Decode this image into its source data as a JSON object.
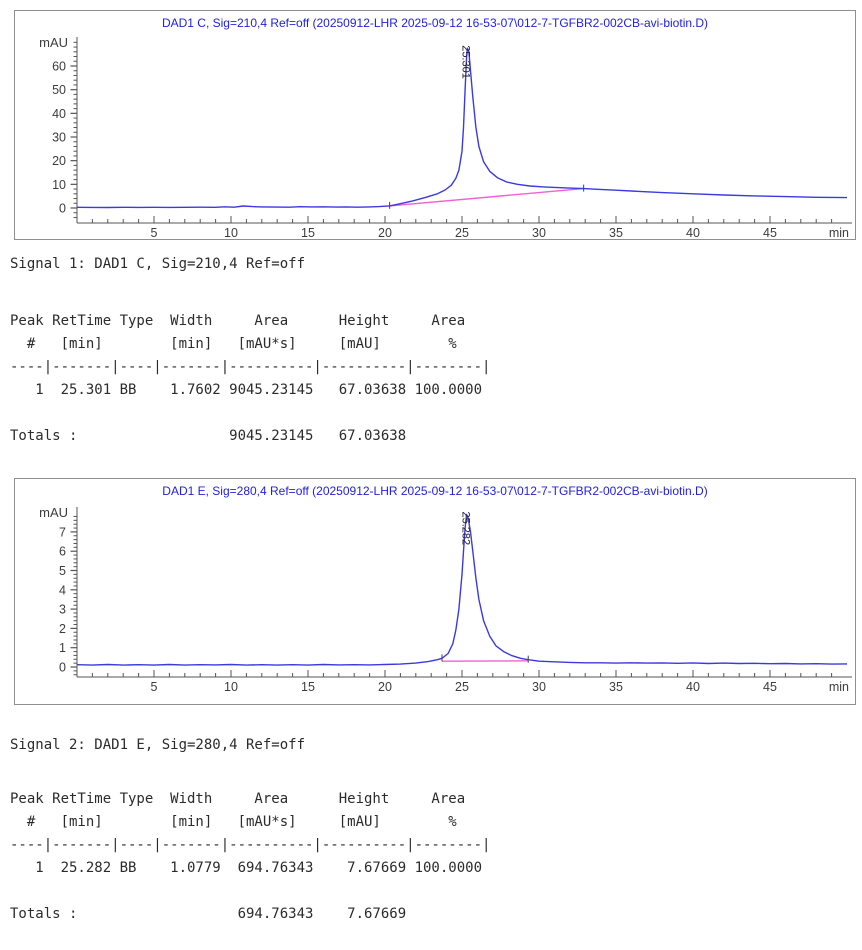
{
  "page": {
    "background": "#ffffff"
  },
  "colors": {
    "title_blue": "#2222dd",
    "curve_blue": "#3a3ae0",
    "baseline_pink": "#f45fd4",
    "axis_line": "#555555",
    "axis_text": "#3c3c3c",
    "body_text": "#2b2b2b",
    "chart_border": "#8f8f8f",
    "peak_label_text": "#222222"
  },
  "signal1": {
    "heading": "Signal 1: DAD1 C, Sig=210,4 Ref=off",
    "table_lines": [
      "Peak RetTime Type  Width     Area      Height     Area  ",
      "  #   [min]        [min]   [mAU*s]     [mAU]        %",
      "----|-------|----|-------|----------|----------|--------|",
      "   1  25.301 BB    1.7602 9045.23145   67.03638 100.0000",
      "",
      "Totals :                  9045.23145   67.03638"
    ],
    "table": {
      "headers": [
        "Peak #",
        "RetTime [min]",
        "Type",
        "Width [min]",
        "Area [mAU*s]",
        "Height [mAU]",
        "Area %"
      ],
      "rows": [
        [
          "1",
          "25.301",
          "BB",
          "1.7602",
          "9045.23145",
          "67.03638",
          "100.0000"
        ]
      ],
      "totals": {
        "label": "Totals :",
        "area": "9045.23145",
        "height": "67.03638"
      }
    }
  },
  "signal2": {
    "heading": "Signal 2: DAD1 E, Sig=280,4 Ref=off",
    "table_lines": [
      "Peak RetTime Type  Width     Area      Height     Area  ",
      "  #   [min]        [min]   [mAU*s]     [mAU]        %",
      "----|-------|----|-------|----------|----------|--------|",
      "   1  25.282 BB    1.0779  694.76343    7.67669 100.0000",
      "",
      "Totals :                   694.76343    7.67669"
    ],
    "table": {
      "headers": [
        "Peak #",
        "RetTime [min]",
        "Type",
        "Width [min]",
        "Area [mAU*s]",
        "Height [mAU]",
        "Area %"
      ],
      "rows": [
        [
          "1",
          "25.282",
          "BB",
          "1.0779",
          "694.76343",
          "7.67669",
          "100.0000"
        ]
      ],
      "totals": {
        "label": "Totals :",
        "area": "694.76343",
        "height": "7.67669"
      }
    }
  },
  "chart_data": [
    {
      "type": "line",
      "title": "DAD1 C, Sig=210,4 Ref=off (20250912-LHR 2025-09-12 16-53-07\\012-7-TGFBR2-002CB-avi-biotin.D)",
      "ylabel": "mAU",
      "xlabel": "min",
      "xlim": [
        0,
        50
      ],
      "ylim": [
        -6,
        72
      ],
      "grid": false,
      "legend": false,
      "x_major_ticks": [
        5,
        10,
        15,
        20,
        25,
        30,
        35,
        40,
        45
      ],
      "x_minor_step": 1,
      "y_major_ticks": [
        0,
        10,
        20,
        30,
        40,
        50,
        60
      ],
      "y_minor_step": 2,
      "y_minor_min": -4,
      "y_minor_max": 70,
      "series": [
        {
          "name": "integration-baseline",
          "color_key": "baseline_pink",
          "points": [
            [
              20.3,
              0.9
            ],
            [
              32.9,
              8.2
            ]
          ]
        },
        {
          "name": "DAD1 C signal 210,4 nm",
          "color_key": "curve_blue",
          "points": [
            [
              0,
              0.3
            ],
            [
              1,
              0.25
            ],
            [
              2,
              0.2
            ],
            [
              3,
              0.3
            ],
            [
              4,
              0.25
            ],
            [
              5,
              0.3
            ],
            [
              6,
              0.25
            ],
            [
              7,
              0.3
            ],
            [
              8,
              0.35
            ],
            [
              9,
              0.3
            ],
            [
              9.6,
              0.5
            ],
            [
              10.2,
              0.35
            ],
            [
              10.8,
              0.85
            ],
            [
              11.4,
              0.6
            ],
            [
              12,
              0.45
            ],
            [
              13,
              0.4
            ],
            [
              13.8,
              0.35
            ],
            [
              14.5,
              0.55
            ],
            [
              15.2,
              0.45
            ],
            [
              16,
              0.5
            ],
            [
              16.8,
              0.4
            ],
            [
              17.5,
              0.45
            ],
            [
              18.2,
              0.35
            ],
            [
              19,
              0.45
            ],
            [
              19.6,
              0.6
            ],
            [
              20.3,
              0.9
            ],
            [
              21,
              1.8
            ],
            [
              21.8,
              3
            ],
            [
              22.6,
              4.4
            ],
            [
              23.4,
              6
            ],
            [
              23.9,
              7.6
            ],
            [
              24.3,
              9.6
            ],
            [
              24.6,
              12.5
            ],
            [
              24.8,
              16
            ],
            [
              25,
              24
            ],
            [
              25.1,
              34
            ],
            [
              25.2,
              50
            ],
            [
              25.3,
              64
            ],
            [
              25.35,
              67.5
            ],
            [
              25.45,
              66
            ],
            [
              25.55,
              58
            ],
            [
              25.7,
              47
            ],
            [
              25.9,
              34
            ],
            [
              26.1,
              26
            ],
            [
              26.4,
              19.5
            ],
            [
              26.8,
              15.5
            ],
            [
              27.3,
              12.8
            ],
            [
              27.9,
              11
            ],
            [
              28.6,
              10
            ],
            [
              29.4,
              9.3
            ],
            [
              30.3,
              8.9
            ],
            [
              31.2,
              8.6
            ],
            [
              32,
              8.4
            ],
            [
              32.9,
              8.2
            ],
            [
              33.8,
              7.9
            ],
            [
              35,
              7.5
            ],
            [
              36.5,
              7
            ],
            [
              38,
              6.5
            ],
            [
              40,
              6
            ],
            [
              42,
              5.5
            ],
            [
              44,
              5.1
            ],
            [
              46,
              4.8
            ],
            [
              48,
              4.5
            ],
            [
              50,
              4.4
            ]
          ]
        }
      ],
      "peak": {
        "label": "25.301",
        "retention_min": 25.301,
        "apex_mau": 67.5,
        "markers": [
          [
            20.3,
            0.9
          ],
          [
            32.9,
            8.2
          ]
        ]
      }
    },
    {
      "type": "line",
      "title": "DAD1 E, Sig=280,4 Ref=off (20250912-LHR 2025-09-12 16-53-07\\012-7-TGFBR2-002CB-avi-biotin.D)",
      "ylabel": "mAU",
      "xlabel": "min",
      "xlim": [
        0,
        50
      ],
      "ylim": [
        -0.6,
        8.6
      ],
      "grid": false,
      "legend": false,
      "x_major_ticks": [
        5,
        10,
        15,
        20,
        25,
        30,
        35,
        40,
        45
      ],
      "x_minor_step": 1,
      "y_major_ticks": [
        0,
        1,
        2,
        3,
        4,
        5,
        6,
        7
      ],
      "y_minor_step": 0.2,
      "y_minor_min": -0.4,
      "y_minor_max": 7.8,
      "series": [
        {
          "name": "integration-baseline",
          "color_key": "baseline_pink",
          "points": [
            [
              23.7,
              0.3
            ],
            [
              29.3,
              0.32
            ]
          ]
        },
        {
          "name": "DAD1 E signal 280,4 nm",
          "color_key": "curve_blue",
          "points": [
            [
              0,
              0.12
            ],
            [
              1,
              0.1
            ],
            [
              2,
              0.13
            ],
            [
              3,
              0.1
            ],
            [
              4,
              0.12
            ],
            [
              5,
              0.1
            ],
            [
              6,
              0.13
            ],
            [
              7,
              0.1
            ],
            [
              8,
              0.12
            ],
            [
              9,
              0.11
            ],
            [
              10,
              0.13
            ],
            [
              11,
              0.1
            ],
            [
              12,
              0.12
            ],
            [
              13,
              0.1
            ],
            [
              14,
              0.12
            ],
            [
              15,
              0.1
            ],
            [
              16,
              0.13
            ],
            [
              17,
              0.11
            ],
            [
              18,
              0.12
            ],
            [
              19,
              0.11
            ],
            [
              20,
              0.13
            ],
            [
              21,
              0.15
            ],
            [
              22,
              0.2
            ],
            [
              22.8,
              0.28
            ],
            [
              23.4,
              0.38
            ],
            [
              23.7,
              0.45
            ],
            [
              24.1,
              0.7
            ],
            [
              24.4,
              1.2
            ],
            [
              24.6,
              1.9
            ],
            [
              24.8,
              3
            ],
            [
              25,
              4.8
            ],
            [
              25.1,
              6
            ],
            [
              25.2,
              7.2
            ],
            [
              25.3,
              7.9
            ],
            [
              25.4,
              7.7
            ],
            [
              25.55,
              7
            ],
            [
              25.7,
              6
            ],
            [
              25.9,
              4.6
            ],
            [
              26.1,
              3.5
            ],
            [
              26.4,
              2.4
            ],
            [
              26.8,
              1.6
            ],
            [
              27.2,
              1.1
            ],
            [
              27.7,
              0.8
            ],
            [
              28.2,
              0.6
            ],
            [
              28.8,
              0.45
            ],
            [
              29.3,
              0.38
            ],
            [
              30,
              0.3
            ],
            [
              31,
              0.27
            ],
            [
              32,
              0.24
            ],
            [
              33,
              0.22
            ],
            [
              34,
              0.22
            ],
            [
              35,
              0.2
            ],
            [
              36,
              0.22
            ],
            [
              37,
              0.2
            ],
            [
              38,
              0.21
            ],
            [
              39,
              0.19
            ],
            [
              40,
              0.21
            ],
            [
              41,
              0.18
            ],
            [
              42,
              0.2
            ],
            [
              43,
              0.18
            ],
            [
              44,
              0.19
            ],
            [
              45,
              0.17
            ],
            [
              46,
              0.18
            ],
            [
              47,
              0.16
            ],
            [
              48,
              0.17
            ],
            [
              49,
              0.15
            ],
            [
              50,
              0.16
            ]
          ]
        }
      ],
      "peak": {
        "label": "25.282",
        "retention_min": 25.282,
        "apex_mau": 7.9,
        "markers": [
          [
            23.7,
            0.45
          ],
          [
            29.3,
            0.38
          ]
        ]
      }
    }
  ]
}
